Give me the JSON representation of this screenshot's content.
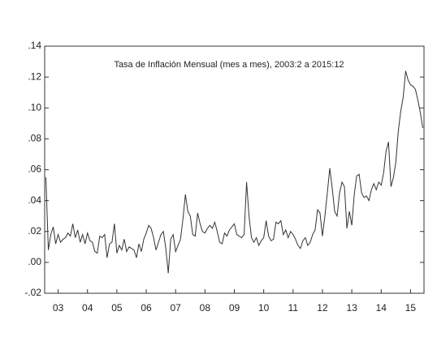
{
  "chart_data": {
    "type": "line",
    "title": "Tasa de Inflación Mensual (mes a mes), 2003:2 a 2015:12",
    "categories": [
      null,
      null,
      null,
      null,
      null,
      "03",
      null,
      null,
      null,
      null,
      null,
      null,
      null,
      null,
      null,
      null,
      null,
      "04",
      null,
      null,
      null,
      null,
      null,
      null,
      null,
      null,
      null,
      null,
      null,
      "05",
      null,
      null,
      null,
      null,
      null,
      null,
      null,
      null,
      null,
      null,
      null,
      "06",
      null,
      null,
      null,
      null,
      null,
      null,
      null,
      null,
      null,
      null,
      null,
      "07",
      null,
      null,
      null,
      null,
      null,
      null,
      null,
      null,
      null,
      null,
      null,
      "08",
      null,
      null,
      null,
      null,
      null,
      null,
      null,
      null,
      null,
      null,
      null,
      "09",
      null,
      null,
      null,
      null,
      null,
      null,
      null,
      null,
      null,
      null,
      null,
      "10",
      null,
      null,
      null,
      null,
      null,
      null,
      null,
      null,
      null,
      null,
      null,
      "11",
      null,
      null,
      null,
      null,
      null,
      null,
      null,
      null,
      null,
      null,
      null,
      "12",
      null,
      null,
      null,
      null,
      null,
      null,
      null,
      null,
      null,
      null,
      null,
      "13",
      null,
      null,
      null,
      null,
      null,
      null,
      null,
      null,
      null,
      null,
      null,
      "14",
      null,
      null,
      null,
      null,
      null,
      null,
      null,
      null,
      null,
      null,
      null,
      "15",
      null,
      null,
      null,
      null,
      null
    ],
    "values": [
      0.055,
      0.008,
      0.018,
      0.023,
      0.012,
      0.018,
      0.013,
      0.015,
      0.016,
      0.019,
      0.017,
      0.025,
      0.016,
      0.021,
      0.013,
      0.018,
      0.012,
      0.019,
      0.014,
      0.013,
      0.007,
      0.006,
      0.017,
      0.016,
      0.018,
      0.003,
      0.012,
      0.013,
      0.025,
      0.006,
      0.011,
      0.008,
      0.015,
      0.007,
      0.01,
      0.009,
      0.008,
      0.003,
      0.012,
      0.007,
      0.015,
      0.019,
      0.024,
      0.022,
      0.016,
      0.008,
      0.013,
      0.018,
      0.02,
      0.009,
      -0.007,
      0.015,
      0.018,
      0.007,
      0.011,
      0.015,
      0.028,
      0.044,
      0.033,
      0.03,
      0.018,
      0.017,
      0.032,
      0.025,
      0.02,
      0.019,
      0.022,
      0.024,
      0.022,
      0.026,
      0.02,
      0.013,
      0.012,
      0.019,
      0.017,
      0.021,
      0.023,
      0.025,
      0.018,
      0.017,
      0.016,
      0.018,
      0.052,
      0.03,
      0.016,
      0.013,
      0.016,
      0.011,
      0.014,
      0.016,
      0.027,
      0.017,
      0.014,
      0.015,
      0.026,
      0.025,
      0.027,
      0.018,
      0.021,
      0.016,
      0.02,
      0.018,
      0.015,
      0.011,
      0.009,
      0.014,
      0.016,
      0.011,
      0.013,
      0.018,
      0.021,
      0.034,
      0.032,
      0.017,
      0.03,
      0.045,
      0.061,
      0.048,
      0.033,
      0.03,
      0.045,
      0.052,
      0.049,
      0.022,
      0.033,
      0.024,
      0.044,
      0.056,
      0.057,
      0.045,
      0.042,
      0.043,
      0.04,
      0.047,
      0.051,
      0.047,
      0.052,
      0.05,
      0.058,
      0.072,
      0.078,
      0.049,
      0.055,
      0.065,
      0.085,
      0.098,
      0.107,
      0.124,
      0.118,
      0.115,
      0.114,
      0.112,
      0.105,
      0.097,
      0.087
    ],
    "color": "#333333",
    "ylim": [
      -0.02,
      0.14
    ],
    "yticks": [
      {
        "value": -0.02,
        "label": "-.02"
      },
      {
        "value": 0,
        "label": ".00"
      },
      {
        "value": 0.02,
        "label": ".02"
      },
      {
        "value": 0.04,
        "label": ".04"
      },
      {
        "value": 0.06,
        "label": ".06"
      },
      {
        "value": 0.08,
        "label": ".08"
      },
      {
        "value": 0.1,
        "label": ".10"
      },
      {
        "value": 0.12,
        "label": ".12"
      },
      {
        "value": 0.14,
        "label": ".14"
      }
    ],
    "grid": false
  }
}
